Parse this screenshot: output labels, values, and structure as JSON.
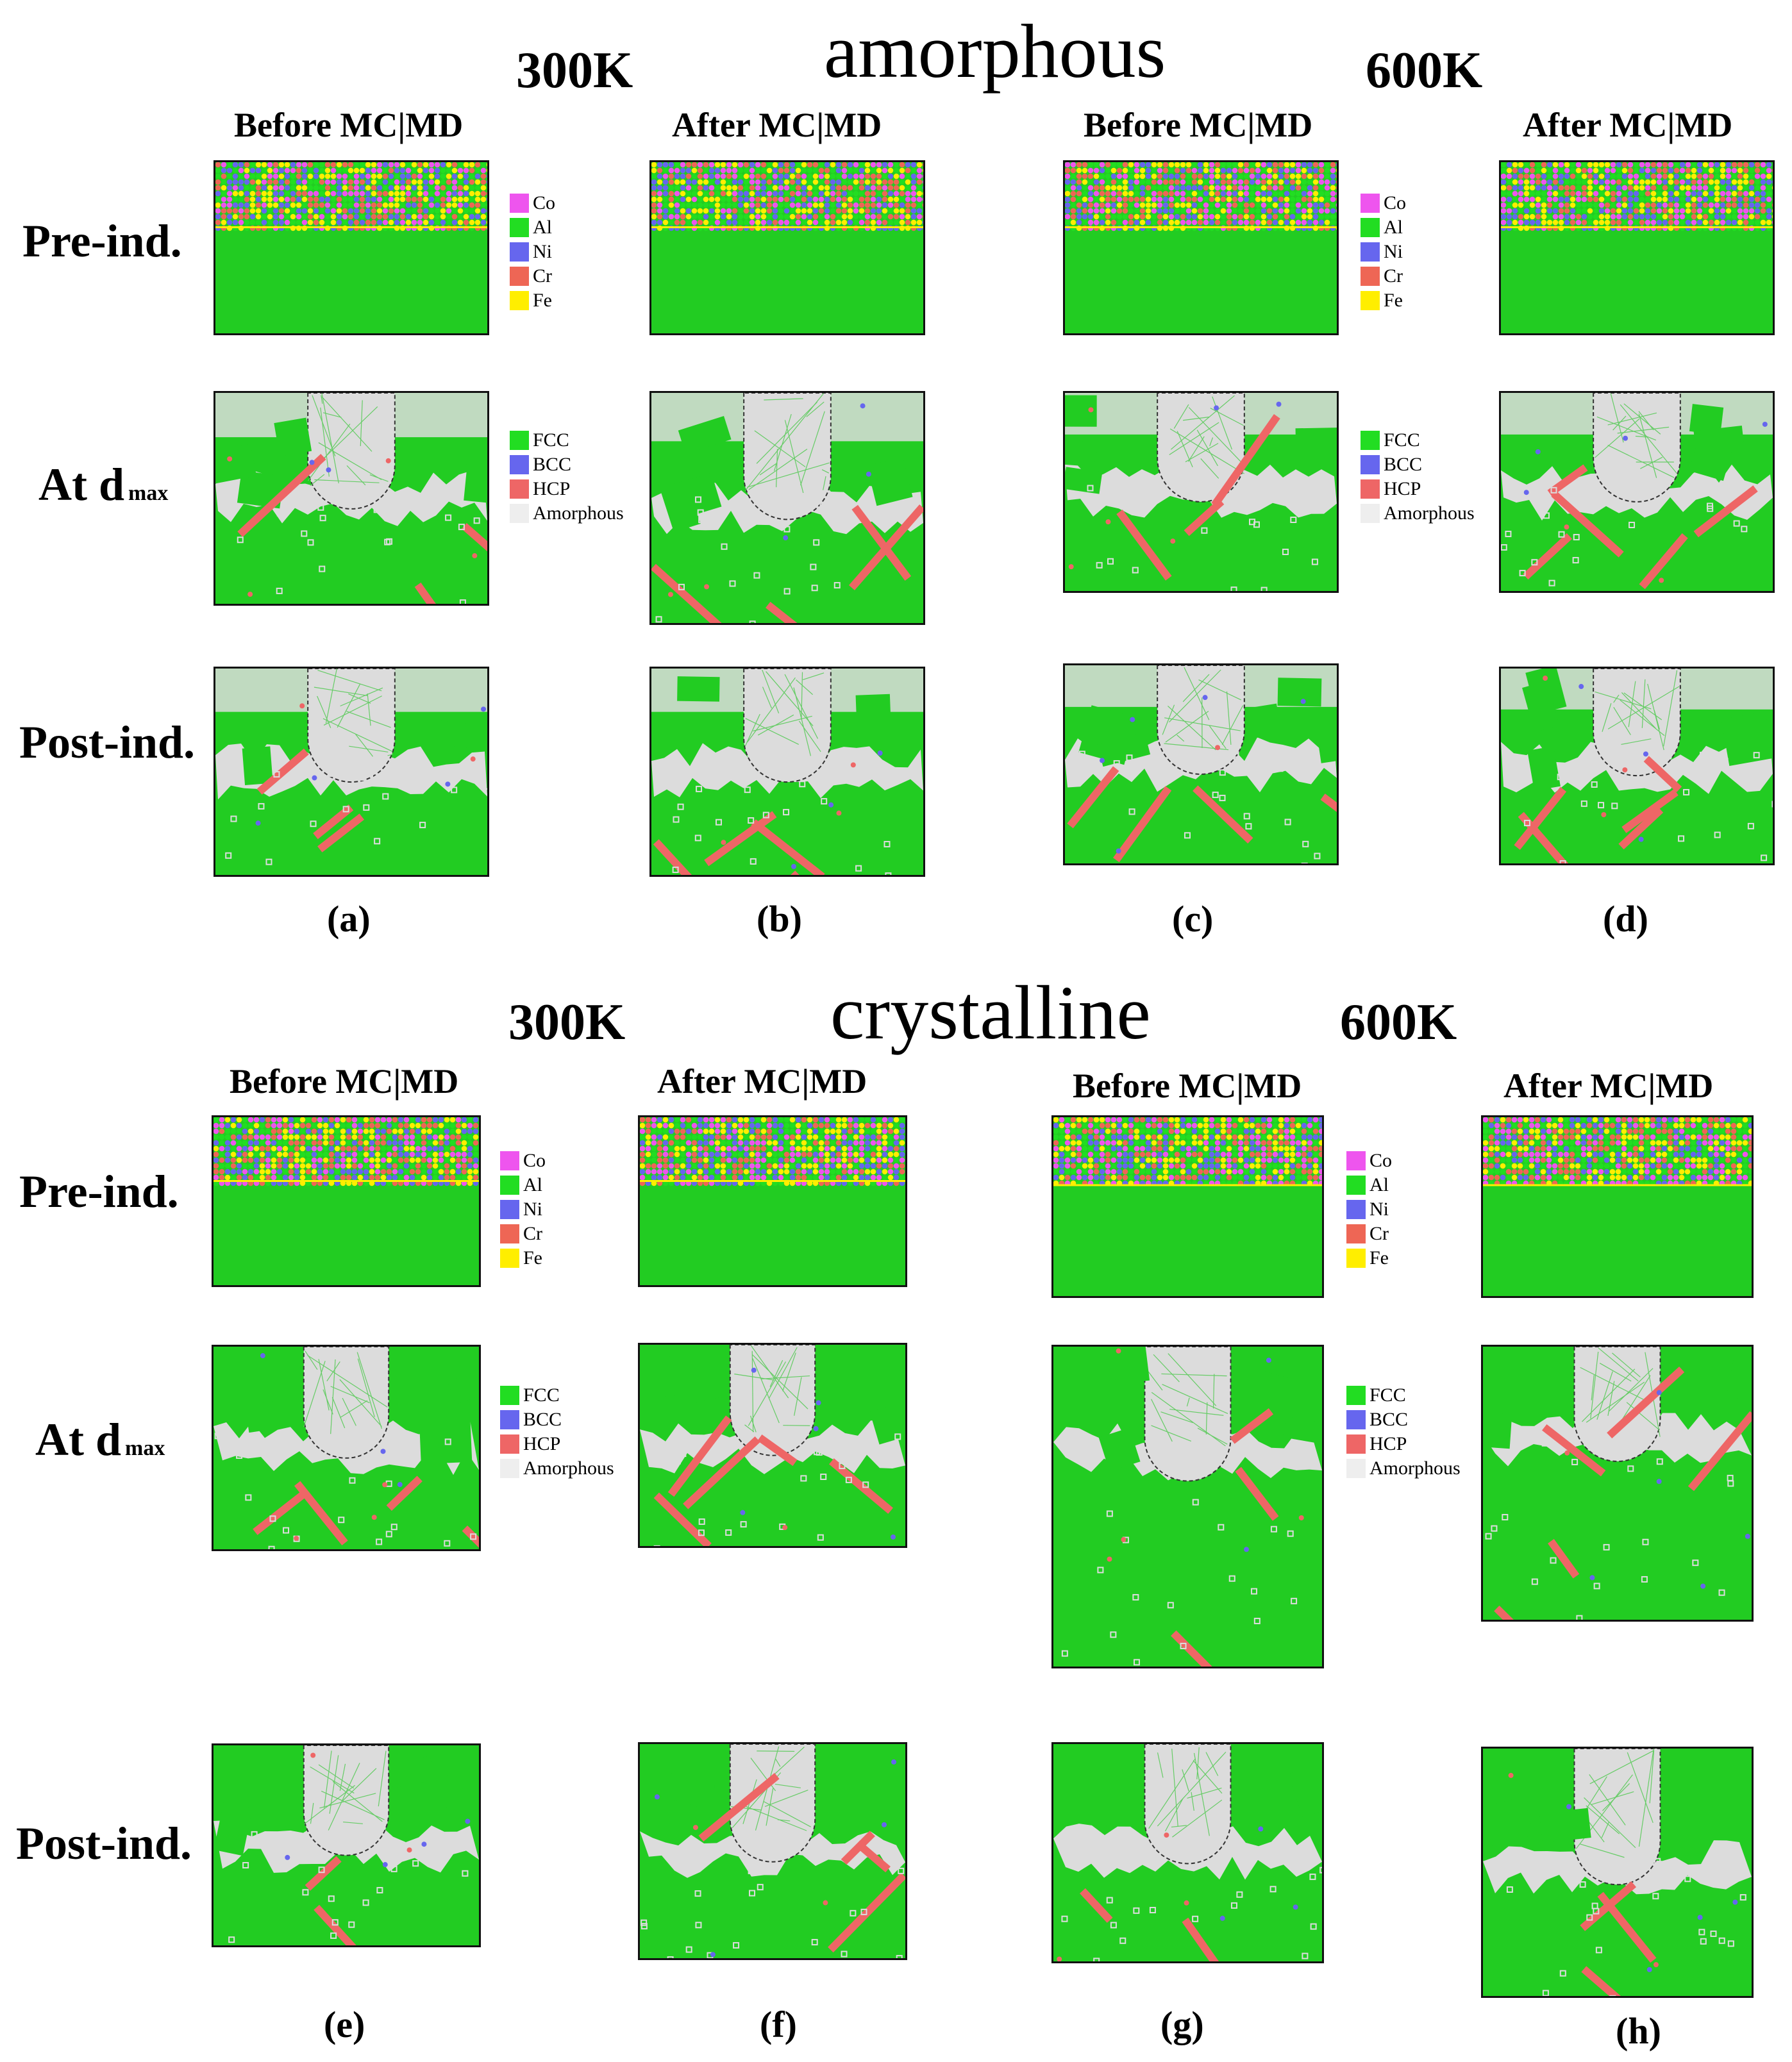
{
  "sections": [
    {
      "title": "amorphous",
      "temp_left": "300K",
      "temp_right": "600K"
    },
    {
      "title": "crystalline",
      "temp_left": "300K",
      "temp_right": "600K"
    }
  ],
  "column_headers": {
    "before": "Before MC|MD",
    "after": "After MC|MD"
  },
  "row_labels": {
    "pre": "Pre-ind.",
    "at_main": "At d",
    "at_sub": "max",
    "post": "Post-ind."
  },
  "panel_labels": [
    "(a)",
    "(b)",
    "(c)",
    "(d)",
    "(e)",
    "(f)",
    "(g)",
    "(h)"
  ],
  "element_legend": [
    {
      "label": "Co",
      "color": "#ee55ee"
    },
    {
      "label": "Al",
      "color": "#22dd22"
    },
    {
      "label": "Ni",
      "color": "#6666ee"
    },
    {
      "label": "Cr",
      "color": "#ee6655"
    },
    {
      "label": "Fe",
      "color": "#ffee00"
    }
  ],
  "structure_legend": [
    {
      "label": "FCC",
      "color": "#22dd22"
    },
    {
      "label": "BCC",
      "color": "#6666ee"
    },
    {
      "label": "HCP",
      "color": "#ee6666"
    },
    {
      "label": "Amorphous",
      "color": "#eeeeee"
    }
  ]
}
